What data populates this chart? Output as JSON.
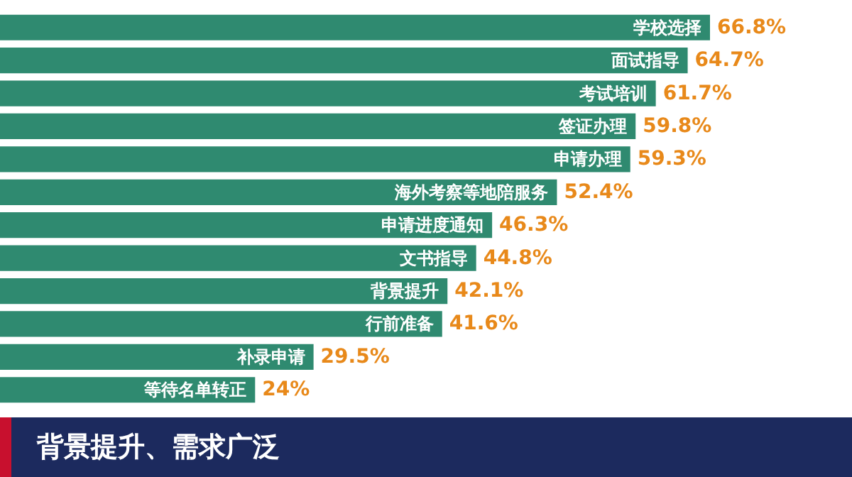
{
  "chart_data": {
    "type": "bar",
    "orientation": "horizontal",
    "title": "背景提升、需求广泛",
    "categories": [
      "学校选择",
      "面试指导",
      "考试培训",
      "签证办理",
      "申请办理",
      "海外考察等地陪服务",
      "申请进度通知",
      "文书指导",
      "背景提升",
      "行前准备",
      "补录申请",
      "等待名单转正"
    ],
    "values": [
      66.8,
      64.7,
      61.7,
      59.8,
      59.3,
      52.4,
      46.3,
      44.8,
      42.1,
      41.6,
      29.5,
      24
    ],
    "value_labels": [
      "66.8%",
      "64.7%",
      "61.7%",
      "59.8%",
      "59.3%",
      "52.4%",
      "46.3%",
      "44.8%",
      "42.1%",
      "41.6%",
      "29.5%",
      "24%"
    ],
    "color": "#2f8a70"
  }
}
